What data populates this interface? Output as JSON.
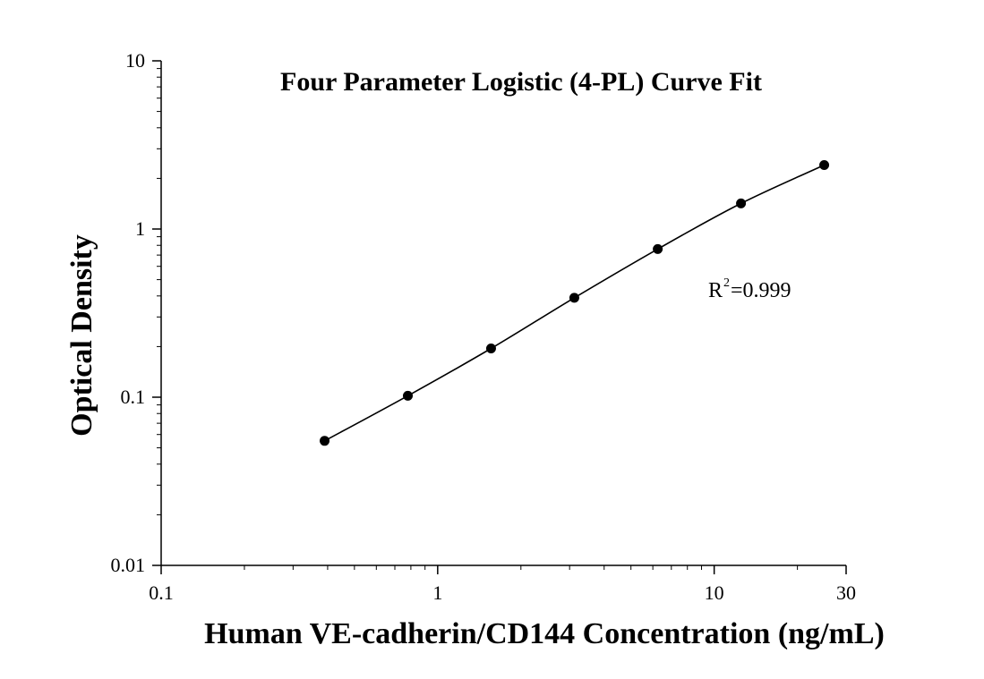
{
  "chart_data": {
    "type": "scatter",
    "title": "Four Parameter Logistic (4-PL) Curve Fit",
    "xlabel": "Human VE-cadherin/CD144 Concentration (ng/mL)",
    "ylabel": "Optical Density",
    "x_scale": "log",
    "y_scale": "log",
    "xlim": [
      0.1,
      30
    ],
    "ylim": [
      0.01,
      10
    ],
    "x_ticks": [
      {
        "value": 0.1,
        "label": "0.1"
      },
      {
        "value": 1,
        "label": "1"
      },
      {
        "value": 10,
        "label": "10"
      },
      {
        "value": 30,
        "label": "30"
      }
    ],
    "y_ticks": [
      {
        "value": 0.01,
        "label": "0.01"
      },
      {
        "value": 0.1,
        "label": "0.1"
      },
      {
        "value": 1,
        "label": "1"
      },
      {
        "value": 10,
        "label": "10"
      }
    ],
    "grid": false,
    "series": [
      {
        "points": [
          {
            "x": 0.39,
            "y": 0.055
          },
          {
            "x": 0.78,
            "y": 0.102
          },
          {
            "x": 1.56,
            "y": 0.195
          },
          {
            "x": 3.12,
            "y": 0.39
          },
          {
            "x": 6.25,
            "y": 0.76
          },
          {
            "x": 12.5,
            "y": 1.42
          },
          {
            "x": 25,
            "y": 2.4
          }
        ],
        "fit": "4-PL"
      }
    ],
    "annotation": {
      "r_label": "R",
      "r_superscript": "2",
      "r_value": "=0.999"
    },
    "colors": {
      "marker": "#000000",
      "line": "#000000",
      "axis": "#000000"
    }
  }
}
